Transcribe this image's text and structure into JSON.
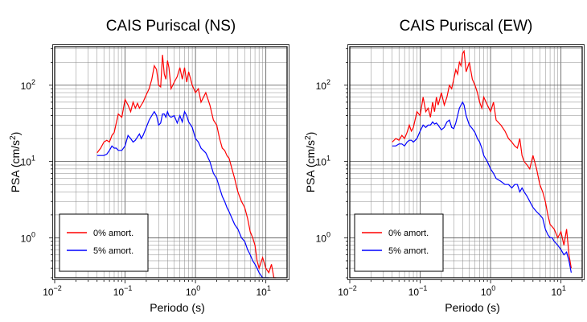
{
  "chart_data": [
    {
      "type": "line",
      "title": "CAIS Puriscal (NS)",
      "xlabel": "Periodo (s)",
      "ylabel_main": "PSA (cm/s",
      "ylabel_sup": "2",
      "ylabel_close": ")",
      "xscale": "log",
      "yscale": "log",
      "xlim": [
        0.01,
        20
      ],
      "ylim": [
        0.3,
        320
      ],
      "grid": true,
      "legend_position": "bottom-left",
      "x_ticks": [
        {
          "value": 0.01,
          "base": "10",
          "exp": "−2"
        },
        {
          "value": 0.1,
          "base": "10",
          "exp": "−1"
        },
        {
          "value": 1,
          "base": "10",
          "exp": "0"
        },
        {
          "value": 10,
          "base": "10",
          "exp": "1"
        }
      ],
      "y_ticks": [
        {
          "value": 1,
          "base": "10",
          "exp": "0"
        },
        {
          "value": 10,
          "base": "10",
          "exp": "1"
        },
        {
          "value": 100,
          "base": "10",
          "exp": "2"
        }
      ],
      "series": [
        {
          "name": "0% amort.",
          "color": "#ff0000",
          "x": [
            0.04,
            0.045,
            0.05,
            0.055,
            0.06,
            0.065,
            0.07,
            0.075,
            0.08,
            0.09,
            0.1,
            0.11,
            0.12,
            0.13,
            0.14,
            0.15,
            0.16,
            0.17,
            0.18,
            0.2,
            0.22,
            0.24,
            0.26,
            0.28,
            0.3,
            0.32,
            0.34,
            0.36,
            0.38,
            0.4,
            0.42,
            0.45,
            0.5,
            0.55,
            0.6,
            0.65,
            0.7,
            0.75,
            0.8,
            0.9,
            1.0,
            1.1,
            1.2,
            1.4,
            1.6,
            1.8,
            2.0,
            2.2,
            2.4,
            2.6,
            2.8,
            3.0,
            3.3,
            3.6,
            4.0,
            4.5,
            5.0,
            5.5,
            6.0,
            6.5,
            7.0,
            7.5,
            8.0,
            9.0,
            10.0,
            11.0,
            12.0,
            13.0,
            14.0
          ],
          "y": [
            13,
            15,
            18,
            19,
            18,
            22,
            24,
            32,
            42,
            38,
            65,
            55,
            45,
            60,
            50,
            58,
            50,
            55,
            60,
            75,
            90,
            120,
            180,
            160,
            100,
            95,
            250,
            140,
            120,
            210,
            170,
            90,
            110,
            130,
            170,
            120,
            170,
            110,
            150,
            100,
            80,
            90,
            60,
            80,
            55,
            35,
            30,
            20,
            15,
            14,
            12,
            11,
            8,
            6,
            4,
            3,
            2.5,
            1.8,
            1.2,
            1.0,
            0.8,
            0.5,
            0.4,
            0.55,
            0.4,
            0.35,
            0.45,
            0.3,
            0.3
          ]
        },
        {
          "name": "5% amort.",
          "color": "#0000ff",
          "x": [
            0.04,
            0.045,
            0.05,
            0.055,
            0.06,
            0.065,
            0.07,
            0.075,
            0.08,
            0.09,
            0.1,
            0.11,
            0.12,
            0.13,
            0.14,
            0.15,
            0.16,
            0.17,
            0.18,
            0.2,
            0.22,
            0.24,
            0.26,
            0.28,
            0.3,
            0.32,
            0.34,
            0.36,
            0.38,
            0.4,
            0.42,
            0.45,
            0.5,
            0.55,
            0.6,
            0.65,
            0.7,
            0.75,
            0.8,
            0.9,
            1.0,
            1.1,
            1.2,
            1.4,
            1.6,
            1.8,
            2.0,
            2.2,
            2.4,
            2.6,
            2.8,
            3.0,
            3.3,
            3.6,
            4.0,
            4.5,
            5.0,
            5.5,
            6.0,
            6.5,
            7.0,
            7.5,
            8.0,
            9.0,
            10.0,
            11.0
          ],
          "y": [
            12,
            12,
            12,
            12.5,
            14,
            16,
            15,
            15,
            14,
            14,
            16,
            22,
            20,
            18,
            19,
            21,
            23,
            20,
            22,
            28,
            35,
            40,
            45,
            40,
            30,
            32,
            42,
            42,
            38,
            45,
            40,
            38,
            40,
            32,
            40,
            33,
            45,
            40,
            33,
            28,
            20,
            18,
            15,
            13,
            10,
            7,
            6,
            4.5,
            3.5,
            3.0,
            2.5,
            2.2,
            1.8,
            1.5,
            1.3,
            1.0,
            0.9,
            0.7,
            0.6,
            0.5,
            0.45,
            0.4,
            0.35,
            0.3,
            0.28,
            0.28
          ]
        }
      ]
    },
    {
      "type": "line",
      "title": "CAIS Puriscal (EW)",
      "xlabel": "Periodo (s)",
      "ylabel_main": "PSA (cm/s",
      "ylabel_sup": "2",
      "ylabel_close": ")",
      "xscale": "log",
      "yscale": "log",
      "xlim": [
        0.01,
        20
      ],
      "ylim": [
        0.3,
        320
      ],
      "grid": true,
      "legend_position": "bottom-left",
      "x_ticks": [
        {
          "value": 0.01,
          "base": "10",
          "exp": "−2"
        },
        {
          "value": 0.1,
          "base": "10",
          "exp": "−1"
        },
        {
          "value": 1,
          "base": "10",
          "exp": "0"
        },
        {
          "value": 10,
          "base": "10",
          "exp": "1"
        }
      ],
      "y_ticks": [
        {
          "value": 1,
          "base": "10",
          "exp": "0"
        },
        {
          "value": 10,
          "base": "10",
          "exp": "1"
        },
        {
          "value": 100,
          "base": "10",
          "exp": "2"
        }
      ],
      "series": [
        {
          "name": "0% amort.",
          "color": "#ff0000",
          "x": [
            0.04,
            0.045,
            0.05,
            0.055,
            0.06,
            0.065,
            0.07,
            0.075,
            0.08,
            0.09,
            0.1,
            0.11,
            0.12,
            0.13,
            0.14,
            0.15,
            0.16,
            0.17,
            0.18,
            0.2,
            0.22,
            0.24,
            0.26,
            0.28,
            0.3,
            0.32,
            0.34,
            0.36,
            0.38,
            0.4,
            0.42,
            0.45,
            0.5,
            0.55,
            0.6,
            0.65,
            0.7,
            0.75,
            0.8,
            0.9,
            1.0,
            1.1,
            1.2,
            1.4,
            1.6,
            1.8,
            2.0,
            2.2,
            2.4,
            2.6,
            2.8,
            3.0,
            3.3,
            3.6,
            4.0,
            4.5,
            5.0,
            5.5,
            6.0,
            6.5,
            7.0,
            7.5,
            8.0,
            9.0,
            10.0,
            11.0,
            12.0,
            13.0,
            14.0
          ],
          "y": [
            18,
            20,
            19,
            22,
            20,
            24,
            30,
            25,
            28,
            45,
            40,
            70,
            45,
            50,
            38,
            60,
            45,
            70,
            55,
            80,
            55,
            70,
            100,
            90,
            120,
            160,
            140,
            200,
            180,
            260,
            280,
            150,
            200,
            120,
            100,
            80,
            60,
            50,
            70,
            55,
            45,
            60,
            35,
            30,
            25,
            20,
            18,
            16,
            15,
            20,
            12,
            10,
            9,
            8,
            12,
            8,
            5,
            4,
            3,
            2,
            1.5,
            1.4,
            1.3,
            1.0,
            1.2,
            0.8,
            1.3,
            0.6,
            0.4
          ]
        },
        {
          "name": "5% amort.",
          "color": "#0000ff",
          "x": [
            0.04,
            0.045,
            0.05,
            0.055,
            0.06,
            0.065,
            0.07,
            0.075,
            0.08,
            0.09,
            0.1,
            0.11,
            0.12,
            0.13,
            0.14,
            0.15,
            0.16,
            0.17,
            0.18,
            0.2,
            0.22,
            0.24,
            0.26,
            0.28,
            0.3,
            0.32,
            0.34,
            0.36,
            0.38,
            0.4,
            0.42,
            0.45,
            0.5,
            0.55,
            0.6,
            0.65,
            0.7,
            0.75,
            0.8,
            0.9,
            1.0,
            1.1,
            1.2,
            1.4,
            1.6,
            1.8,
            2.0,
            2.2,
            2.4,
            2.6,
            2.8,
            3.0,
            3.3,
            3.6,
            4.0,
            4.5,
            5.0,
            5.5,
            6.0,
            6.5,
            7.0,
            7.5,
            8.0,
            9.0,
            10.0,
            11.0,
            12.0,
            13.0,
            14.0
          ],
          "y": [
            16,
            16,
            17,
            17,
            16,
            18,
            19,
            19,
            18,
            20,
            25,
            30,
            28,
            30,
            30,
            33,
            31,
            32,
            30,
            26,
            28,
            33,
            35,
            28,
            27,
            32,
            40,
            50,
            55,
            60,
            55,
            40,
            30,
            27,
            24,
            20,
            18,
            15,
            12,
            10,
            8,
            7,
            6,
            5.5,
            5,
            5,
            4.5,
            5,
            5,
            4,
            4.5,
            4,
            3.5,
            3,
            2.5,
            2.2,
            2,
            1.8,
            1.3,
            1.1,
            1.0,
            1.0,
            0.9,
            0.8,
            0.7,
            0.6,
            0.65,
            0.5,
            0.35
          ]
        }
      ]
    }
  ]
}
